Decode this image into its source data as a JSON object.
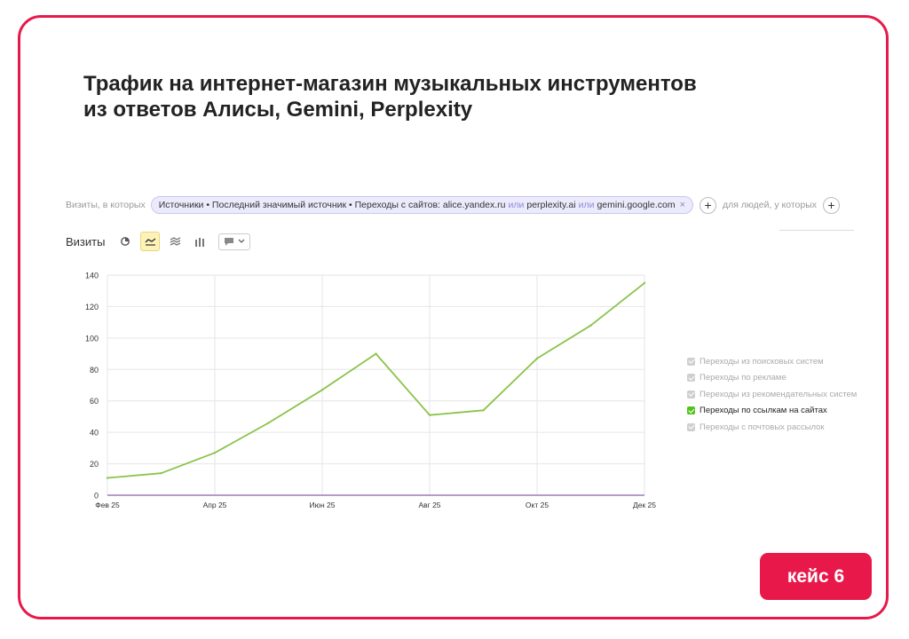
{
  "title_line1": "Трафик на интернет-магазин музыкальных инструментов",
  "title_line2": "из ответов Алисы, Gemini, Perplexity",
  "filter": {
    "prefix": "Визиты, в которых",
    "chip_main": "Источники • Последний значимый источник • Переходы с сайтов: alice.yandex.ru",
    "or1": "или",
    "site2": "perplexity.ai",
    "or2": "или",
    "site3": "gemini.google.com",
    "close_icon": "×",
    "plus1": "+",
    "people_label": "для людей, у которых",
    "plus2": "+"
  },
  "toolbar": {
    "metric_label": "Визиты",
    "icons": [
      "pie-chart-icon",
      "line-chart-icon",
      "stacked-area-icon",
      "stacked-bar-icon",
      "comment-icon",
      "chevron-down-icon"
    ]
  },
  "legend": [
    {
      "label": "Переходы из поисковых систем",
      "checked": false
    },
    {
      "label": "Переходы по рекламе",
      "checked": false
    },
    {
      "label": "Переходы из рекомендательных систем",
      "checked": false
    },
    {
      "label": "Переходы по ссылкам на сайтах",
      "checked": true
    },
    {
      "label": "Переходы с почтовых рассылок",
      "checked": false
    }
  ],
  "badge": "кейс 6",
  "colors": {
    "accent": "#e8194a",
    "series": "#8bc34a",
    "baseline": "#9e7ab8"
  },
  "chart_data": {
    "type": "line",
    "x": [
      "Фев 25",
      "Мар 25",
      "Апр 25",
      "Май 25",
      "Июн 25",
      "Июл 25",
      "Авг 25",
      "Сен 25",
      "Окт 25",
      "Ноя 25",
      "Дек 25"
    ],
    "x_tick_labels": [
      "Фев 25",
      "Апр 25",
      "Июн 25",
      "Авг 25",
      "Окт 25",
      "Дек 25"
    ],
    "series": [
      {
        "name": "Переходы по ссылкам на сайтах",
        "values": [
          11,
          14,
          27,
          46,
          67,
          90,
          51,
          54,
          87,
          108,
          135
        ]
      }
    ],
    "ylim": [
      0,
      140
    ],
    "yticks": [
      0,
      20,
      40,
      60,
      80,
      100,
      120,
      140
    ],
    "grid": true,
    "legend_position": "right"
  }
}
